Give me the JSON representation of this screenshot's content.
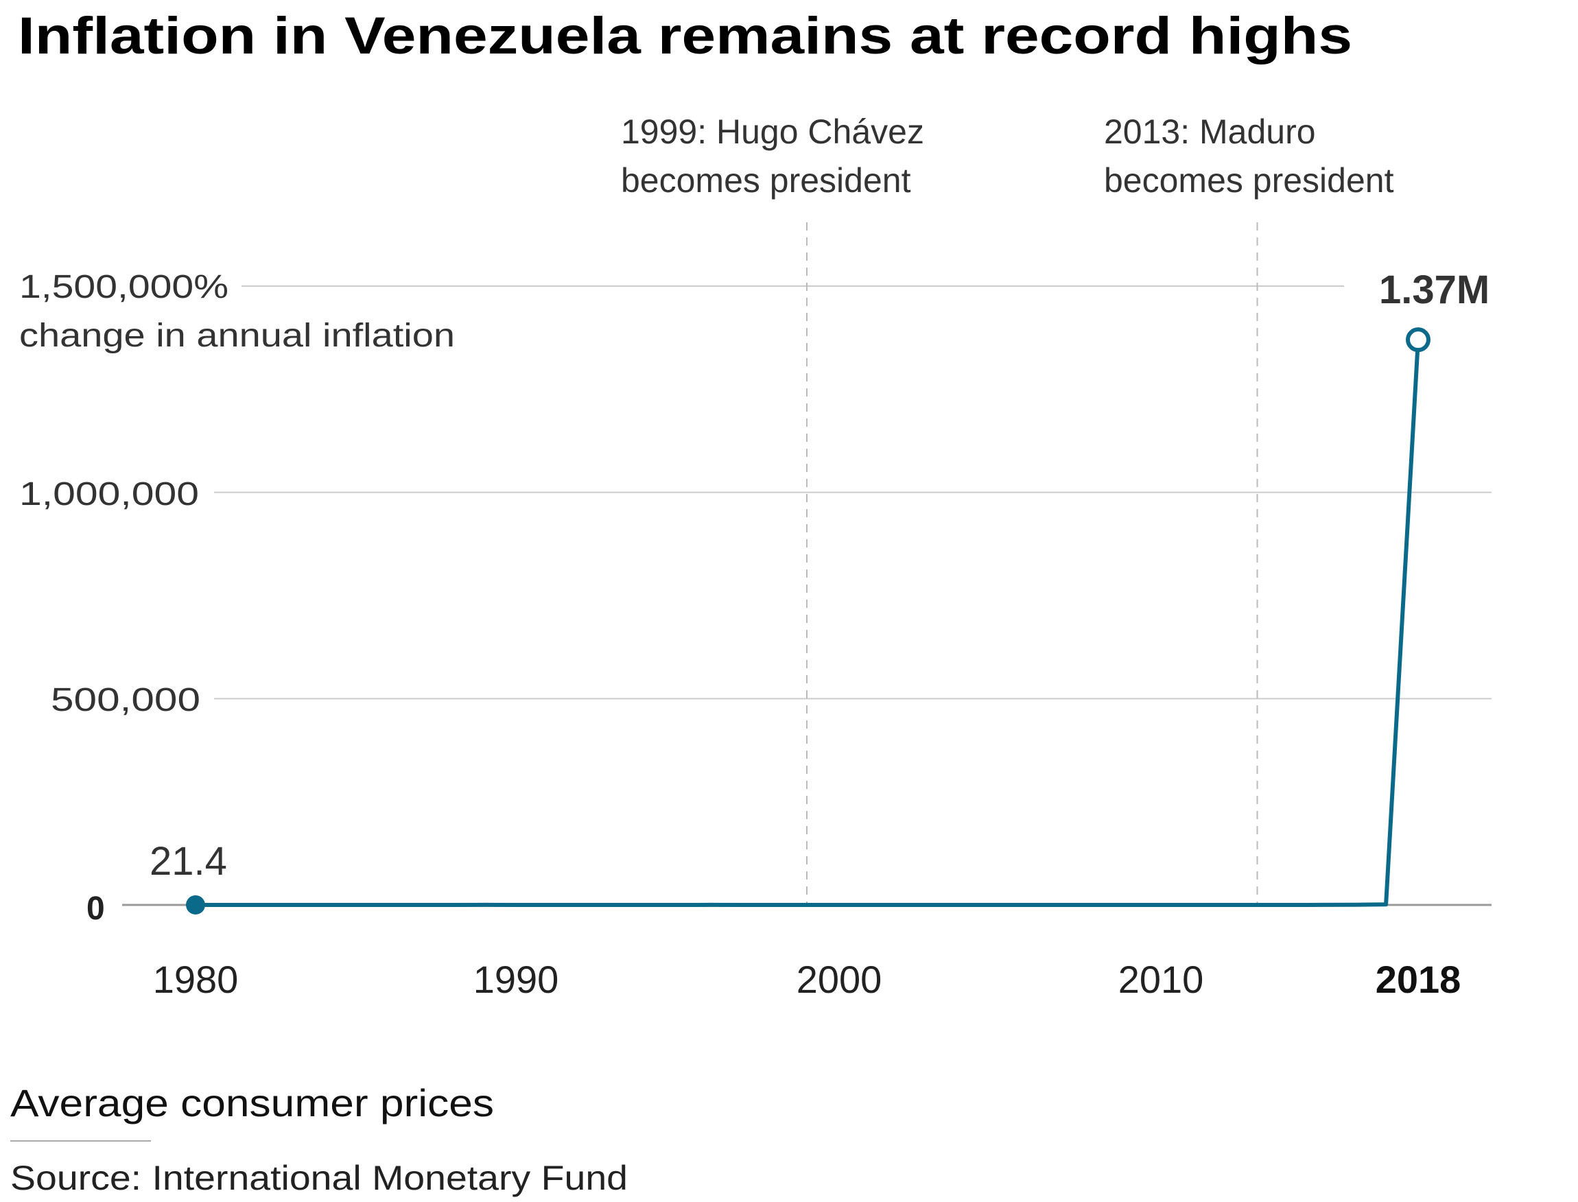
{
  "chart_data": {
    "type": "line",
    "title": "Inflation in Venezuela remains at record highs",
    "ylabel": "change in annual inflation",
    "ytick_labels": [
      "0",
      "500,000",
      "1,000,000",
      "1,500,000%"
    ],
    "yticks": [
      0,
      500000,
      1000000,
      1500000
    ],
    "ylim": [
      0,
      1500000
    ],
    "xticks": [
      1980,
      1990,
      2000,
      2010,
      2018
    ],
    "xtick_labels": [
      "1980",
      "1990",
      "2000",
      "2010",
      "2018"
    ],
    "xlim": [
      1980,
      2018
    ],
    "grid": "horizontal",
    "line_color": "#0b6a8a",
    "x": [
      1980,
      1981,
      1982,
      1983,
      1984,
      1985,
      1986,
      1987,
      1988,
      1989,
      1990,
      1991,
      1992,
      1993,
      1994,
      1995,
      1996,
      1997,
      1998,
      1999,
      2000,
      2001,
      2002,
      2003,
      2004,
      2005,
      2006,
      2007,
      2008,
      2009,
      2010,
      2011,
      2012,
      2013,
      2014,
      2015,
      2016,
      2017,
      2018
    ],
    "values": [
      21.4,
      16.2,
      9.6,
      6.2,
      12.2,
      11.4,
      11.5,
      28.1,
      29.5,
      84.5,
      40.7,
      34.2,
      31.4,
      38.1,
      60.8,
      59.9,
      99.9,
      50.0,
      35.8,
      23.6,
      16.2,
      12.5,
      22.4,
      31.1,
      21.7,
      16.0,
      13.7,
      18.7,
      31.4,
      26.0,
      28.2,
      26.1,
      21.1,
      43.5,
      57.3,
      111.8,
      254.9,
      1087.5,
      1370000
    ],
    "data_labels": {
      "start": "21.4",
      "end": "1.37M"
    },
    "annotations": [
      {
        "year": 1999,
        "line1": "1999: Hugo Chávez",
        "line2": "becomes president"
      },
      {
        "year": 2013,
        "line1": "2013: Maduro",
        "line2": "becomes president"
      }
    ],
    "note": "Average consumer prices",
    "source": "Source: International Monetary Fund"
  }
}
